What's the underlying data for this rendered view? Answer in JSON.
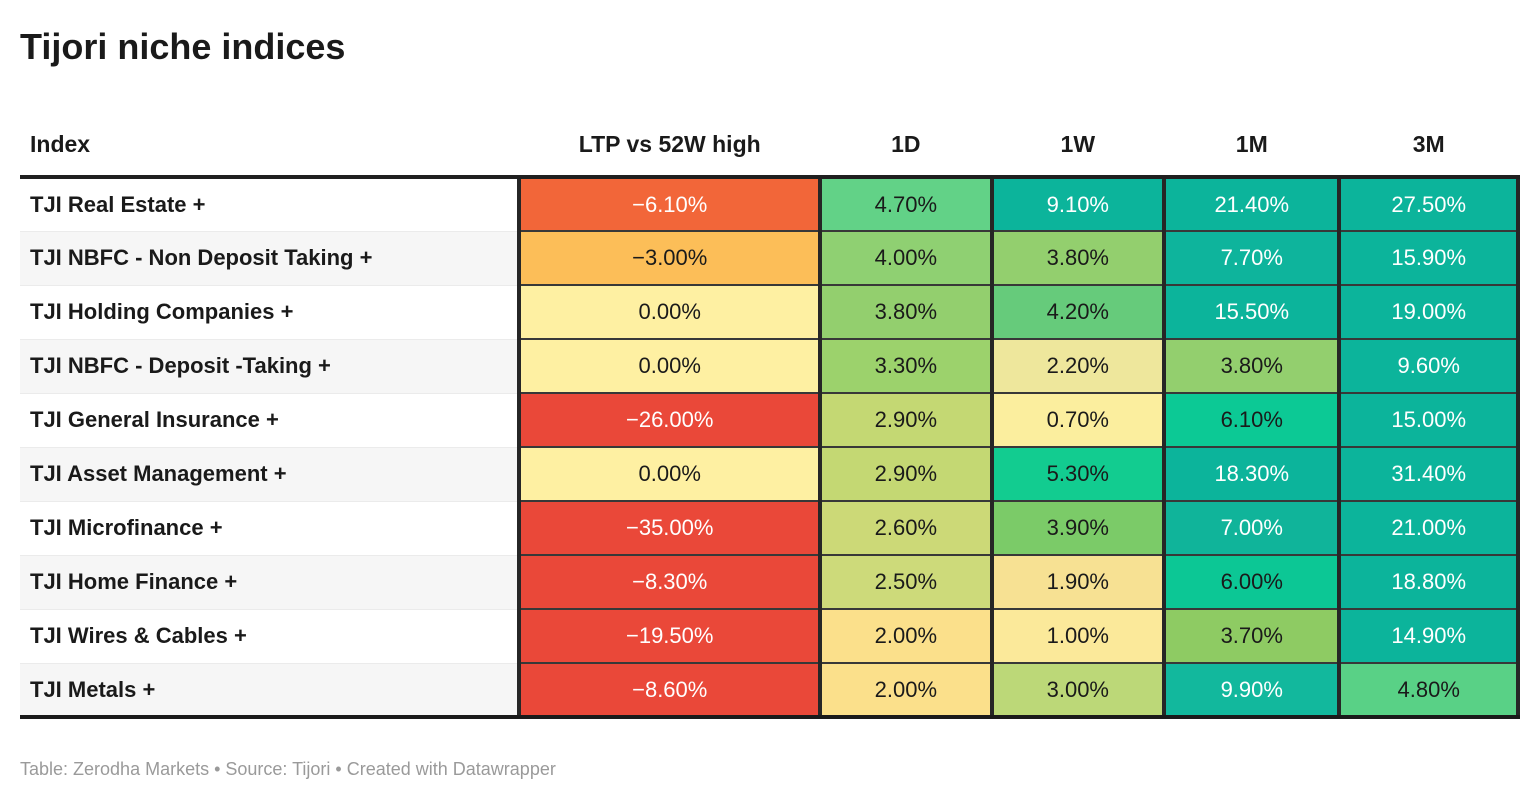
{
  "title": "Tijori niche indices",
  "header": {
    "columns": [
      "Index",
      "LTP vs 52W high",
      "1D",
      "1W",
      "1M",
      "3M"
    ]
  },
  "footer": {
    "attribution": "Table: Zerodha Markets • Source: Tijori • Created with Datawrapper"
  },
  "colors": {
    "negative_strong": "#ea4839",
    "negative_mid": "#f26639",
    "negative_soft": "#fcbe58",
    "zero_yellow": "#fef0a2",
    "positive_teal": "#0cb49b",
    "border_dark": "#262626",
    "header_border": "#1f1f1f",
    "zebra_stripe": "#f6f6f6",
    "text_dark": "#1a1a1a",
    "text_light": "#ffffff",
    "attribution_gray": "#9a9a9a"
  },
  "cell_names": [
    "ltp-vs-52w-high",
    "1d",
    "1w",
    "1m",
    "3m"
  ],
  "table": {
    "rows": [
      {
        "label": "TJI Real Estate +",
        "cells": [
          {
            "v": "−6.10%",
            "bg": "#f26639",
            "fg": "#ffffff"
          },
          {
            "v": "4.70%",
            "bg": "#62d287",
            "fg": "#1a1a1a"
          },
          {
            "v": "9.10%",
            "bg": "#0cb49b",
            "fg": "#ffffff"
          },
          {
            "v": "21.40%",
            "bg": "#0cb49b",
            "fg": "#ffffff"
          },
          {
            "v": "27.50%",
            "bg": "#0cb49b",
            "fg": "#ffffff"
          }
        ]
      },
      {
        "label": "TJI NBFC - Non Deposit Taking +",
        "cells": [
          {
            "v": "−3.00%",
            "bg": "#fcbe58",
            "fg": "#1a1a1a"
          },
          {
            "v": "4.00%",
            "bg": "#8fd072",
            "fg": "#1a1a1a"
          },
          {
            "v": "3.80%",
            "bg": "#93cf6e",
            "fg": "#1a1a1a"
          },
          {
            "v": "7.70%",
            "bg": "#0eb49c",
            "fg": "#ffffff"
          },
          {
            "v": "15.90%",
            "bg": "#0cb49b",
            "fg": "#ffffff"
          }
        ]
      },
      {
        "label": "TJI Holding Companies +",
        "cells": [
          {
            "v": "0.00%",
            "bg": "#fef0a2",
            "fg": "#1a1a1a"
          },
          {
            "v": "3.80%",
            "bg": "#93cf6e",
            "fg": "#1a1a1a"
          },
          {
            "v": "4.20%",
            "bg": "#66cb7b",
            "fg": "#1a1a1a"
          },
          {
            "v": "15.50%",
            "bg": "#0cb49b",
            "fg": "#ffffff"
          },
          {
            "v": "19.00%",
            "bg": "#0cb49b",
            "fg": "#ffffff"
          }
        ]
      },
      {
        "label": "TJI NBFC - Deposit -Taking +",
        "cells": [
          {
            "v": "0.00%",
            "bg": "#fef0a2",
            "fg": "#1a1a1a"
          },
          {
            "v": "3.30%",
            "bg": "#9cd26c",
            "fg": "#1a1a1a"
          },
          {
            "v": "2.20%",
            "bg": "#eee79c",
            "fg": "#1a1a1a"
          },
          {
            "v": "3.80%",
            "bg": "#93cf6e",
            "fg": "#1a1a1a"
          },
          {
            "v": "9.60%",
            "bg": "#0cb49b",
            "fg": "#ffffff"
          }
        ]
      },
      {
        "label": "TJI General Insurance +",
        "cells": [
          {
            "v": "−26.00%",
            "bg": "#ea4839",
            "fg": "#ffffff"
          },
          {
            "v": "2.90%",
            "bg": "#c4d873",
            "fg": "#1a1a1a"
          },
          {
            "v": "0.70%",
            "bg": "#fbee9e",
            "fg": "#1a1a1a"
          },
          {
            "v": "6.10%",
            "bg": "#0cc995",
            "fg": "#1a1a1a"
          },
          {
            "v": "15.00%",
            "bg": "#0cb49b",
            "fg": "#ffffff"
          }
        ]
      },
      {
        "label": "TJI Asset Management +",
        "cells": [
          {
            "v": "0.00%",
            "bg": "#fef0a2",
            "fg": "#1a1a1a"
          },
          {
            "v": "2.90%",
            "bg": "#c4d873",
            "fg": "#1a1a1a"
          },
          {
            "v": "5.30%",
            "bg": "#12cc90",
            "fg": "#1a1a1a"
          },
          {
            "v": "18.30%",
            "bg": "#0cb49b",
            "fg": "#ffffff"
          },
          {
            "v": "31.40%",
            "bg": "#0cb49b",
            "fg": "#ffffff"
          }
        ]
      },
      {
        "label": "TJI Microfinance +",
        "cells": [
          {
            "v": "−35.00%",
            "bg": "#ea4839",
            "fg": "#ffffff"
          },
          {
            "v": "2.60%",
            "bg": "#ccd977",
            "fg": "#1a1a1a"
          },
          {
            "v": "3.90%",
            "bg": "#7bcb68",
            "fg": "#1a1a1a"
          },
          {
            "v": "7.00%",
            "bg": "#10b49a",
            "fg": "#ffffff"
          },
          {
            "v": "21.00%",
            "bg": "#0cb49b",
            "fg": "#ffffff"
          }
        ]
      },
      {
        "label": "TJI Home Finance +",
        "cells": [
          {
            "v": "−8.30%",
            "bg": "#ea4839",
            "fg": "#ffffff"
          },
          {
            "v": "2.50%",
            "bg": "#cdda7a",
            "fg": "#1a1a1a"
          },
          {
            "v": "1.90%",
            "bg": "#f7e193",
            "fg": "#1a1a1a"
          },
          {
            "v": "6.00%",
            "bg": "#0cc795",
            "fg": "#1a1a1a"
          },
          {
            "v": "18.80%",
            "bg": "#0cb49b",
            "fg": "#ffffff"
          }
        ]
      },
      {
        "label": "TJI Wires & Cables +",
        "cells": [
          {
            "v": "−19.50%",
            "bg": "#ea4839",
            "fg": "#ffffff"
          },
          {
            "v": "2.00%",
            "bg": "#fbe08b",
            "fg": "#1a1a1a"
          },
          {
            "v": "1.00%",
            "bg": "#fbe99a",
            "fg": "#1a1a1a"
          },
          {
            "v": "3.70%",
            "bg": "#8ecb63",
            "fg": "#1a1a1a"
          },
          {
            "v": "14.90%",
            "bg": "#0cb49b",
            "fg": "#ffffff"
          }
        ]
      },
      {
        "label": "TJI Metals +",
        "cells": [
          {
            "v": "−8.60%",
            "bg": "#ea4839",
            "fg": "#ffffff"
          },
          {
            "v": "2.00%",
            "bg": "#fbe08b",
            "fg": "#1a1a1a"
          },
          {
            "v": "3.00%",
            "bg": "#bcd878",
            "fg": "#1a1a1a"
          },
          {
            "v": "9.90%",
            "bg": "#12b89d",
            "fg": "#ffffff"
          },
          {
            "v": "4.80%",
            "bg": "#59d186",
            "fg": "#1a1a1a"
          }
        ]
      }
    ]
  },
  "chart_data": {
    "type": "table",
    "title": "Tijori niche indices",
    "columns": [
      "Index",
      "LTP vs 52W high",
      "1D",
      "1W",
      "1M",
      "3M"
    ],
    "units": "percent",
    "rows": [
      [
        "TJI Real Estate +",
        -6.1,
        4.7,
        9.1,
        21.4,
        27.5
      ],
      [
        "TJI NBFC - Non Deposit Taking +",
        -3.0,
        4.0,
        3.8,
        7.7,
        15.9
      ],
      [
        "TJI Holding Companies +",
        0.0,
        3.8,
        4.2,
        15.5,
        19.0
      ],
      [
        "TJI NBFC - Deposit -Taking +",
        0.0,
        3.3,
        2.2,
        3.8,
        9.6
      ],
      [
        "TJI General Insurance +",
        -26.0,
        2.9,
        0.7,
        6.1,
        15.0
      ],
      [
        "TJI Asset Management +",
        0.0,
        2.9,
        5.3,
        18.3,
        31.4
      ],
      [
        "TJI Microfinance +",
        -35.0,
        2.6,
        3.9,
        7.0,
        21.0
      ],
      [
        "TJI Home Finance +",
        -8.3,
        2.5,
        1.9,
        6.0,
        18.8
      ],
      [
        "TJI Wires & Cables +",
        -19.5,
        2.0,
        1.0,
        3.7,
        14.9
      ],
      [
        "TJI Metals +",
        -8.6,
        2.0,
        3.0,
        9.9,
        4.8
      ]
    ],
    "legend_position": "none",
    "grid": false,
    "notes": "heatmap cell coloring: red = strongly negative, orange/amber = mildly negative, yellow = near zero, yellow-green to green = small positive, teal = strongly positive"
  }
}
